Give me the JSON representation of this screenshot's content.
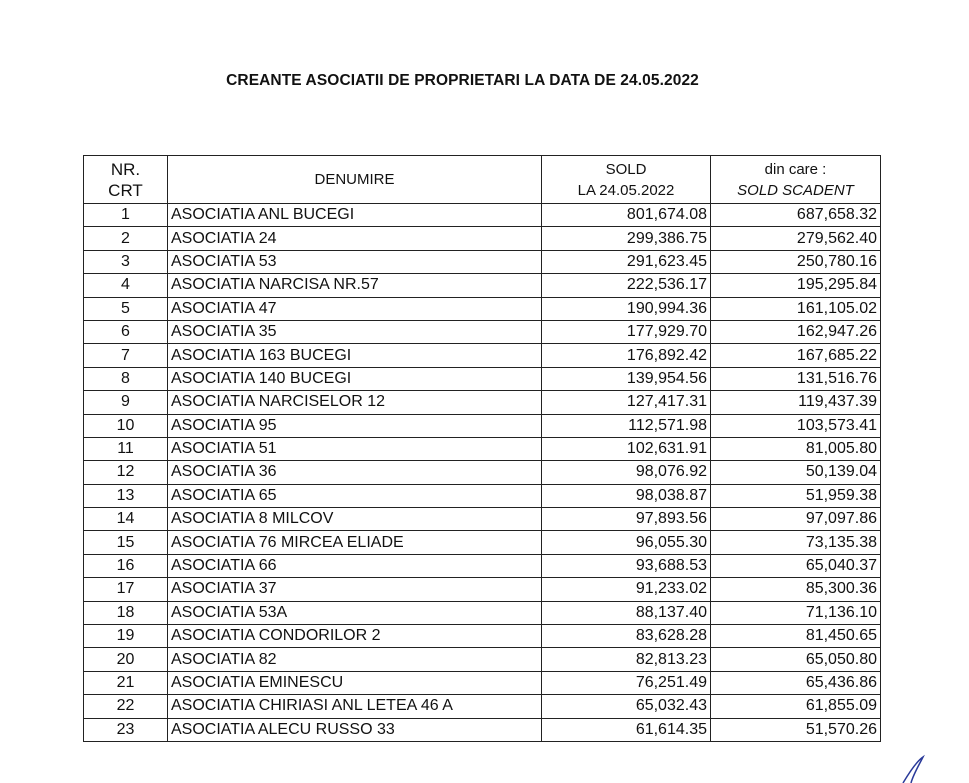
{
  "title": "CREANTE ASOCIATII DE PROPRIETARI LA DATA  DE 24.05.2022",
  "headers": {
    "nr_line1": "NR.",
    "nr_line2": "CRT",
    "denumire": "DENUMIRE",
    "sold_line1": "SOLD",
    "sold_line2": "LA 24.05.2022",
    "scadent_line1": "din care :",
    "scadent_line2": "SOLD SCADENT"
  },
  "rows": [
    {
      "nr": "1",
      "name": "ASOCIATIA ANL BUCEGI",
      "sold": "801,674.08",
      "scadent": "687,658.32"
    },
    {
      "nr": "2",
      "name": "ASOCIATIA  24",
      "sold": "299,386.75",
      "scadent": "279,562.40"
    },
    {
      "nr": "3",
      "name": "ASOCIATIA  53",
      "sold": "291,623.45",
      "scadent": "250,780.16"
    },
    {
      "nr": "4",
      "name": "ASOCIATIA NARCISA NR.57",
      "sold": "222,536.17",
      "scadent": "195,295.84"
    },
    {
      "nr": "5",
      "name": "ASOCIATIA  47",
      "sold": "190,994.36",
      "scadent": "161,105.02"
    },
    {
      "nr": "6",
      "name": "ASOCIATIA  35",
      "sold": "177,929.70",
      "scadent": "162,947.26"
    },
    {
      "nr": "7",
      "name": "ASOCIATIA 163 BUCEGI",
      "sold": "176,892.42",
      "scadent": "167,685.22"
    },
    {
      "nr": "8",
      "name": "ASOCIATIA 140 BUCEGI",
      "sold": "139,954.56",
      "scadent": "131,516.76"
    },
    {
      "nr": "9",
      "name": "ASOCIATIA NARCISELOR 12",
      "sold": "127,417.31",
      "scadent": "119,437.39"
    },
    {
      "nr": "10",
      "name": "ASOCIATIA  95",
      "sold": "112,571.98",
      "scadent": "103,573.41"
    },
    {
      "nr": "11",
      "name": "ASOCIATIA  51",
      "sold": "102,631.91",
      "scadent": "81,005.80"
    },
    {
      "nr": "12",
      "name": "ASOCIATIA  36",
      "sold": "98,076.92",
      "scadent": "50,139.04"
    },
    {
      "nr": "13",
      "name": "ASOCIATIA  65",
      "sold": "98,038.87",
      "scadent": "51,959.38"
    },
    {
      "nr": "14",
      "name": "ASOCIATIA   8 MILCOV",
      "sold": "97,893.56",
      "scadent": "97,097.86"
    },
    {
      "nr": "15",
      "name": "ASOCIATIA  76 MIRCEA ELIADE",
      "sold": "96,055.30",
      "scadent": "73,135.38"
    },
    {
      "nr": "16",
      "name": "ASOCIATIA  66",
      "sold": "93,688.53",
      "scadent": "65,040.37"
    },
    {
      "nr": "17",
      "name": "ASOCIATIA  37",
      "sold": "91,233.02",
      "scadent": "85,300.36"
    },
    {
      "nr": "18",
      "name": "ASOCIATIA  53A",
      "sold": "88,137.40",
      "scadent": "71,136.10"
    },
    {
      "nr": "19",
      "name": "ASOCIATIA CONDORILOR 2",
      "sold": "83,628.28",
      "scadent": "81,450.65"
    },
    {
      "nr": "20",
      "name": "ASOCIATIA  82",
      "sold": "82,813.23",
      "scadent": "65,050.80"
    },
    {
      "nr": "21",
      "name": "ASOCIATIA EMINESCU",
      "sold": "76,251.49",
      "scadent": "65,436.86"
    },
    {
      "nr": "22",
      "name": "ASOCIATIA CHIRIASI ANL LETEA 46 A",
      "sold": "65,032.43",
      "scadent": "61,855.09"
    },
    {
      "nr": "23",
      "name": "ASOCIATIA ALECU RUSSO 33",
      "sold": "61,614.35",
      "scadent": "51,570.26"
    }
  ]
}
